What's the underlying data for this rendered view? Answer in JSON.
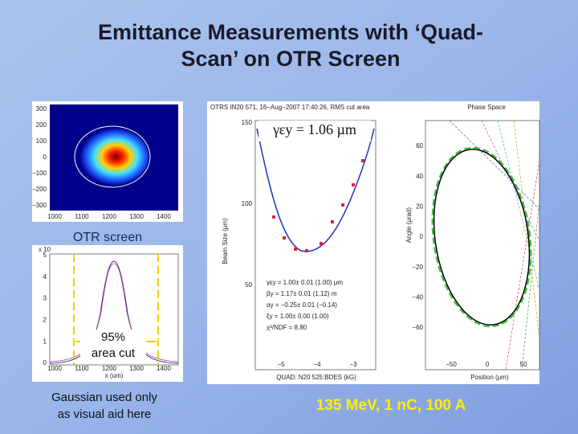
{
  "slide": {
    "title_line1": "Emittance Measurements with ‘Quad-",
    "title_line2": "Scan’ on OTR Screen",
    "otr_image": {
      "yticks": [
        "300",
        "200",
        "100",
        "0",
        "−100",
        "−200",
        "−300"
      ],
      "xticks": [
        "1000",
        "1100",
        "1200",
        "1300",
        "1400"
      ]
    },
    "otr_label": "OTR screen",
    "profile": {
      "scale": "x 10",
      "yticks": [
        "5",
        "4",
        "3",
        "2",
        "1",
        "0"
      ],
      "xticks": [
        "1000",
        "1100",
        "1200",
        "1300",
        "1400"
      ],
      "xlabel": "x (um)",
      "cut_line1": "95%",
      "cut_line2": "area cut"
    },
    "note_line1": "Gaussian used only",
    "note_line2": "as visual aid here",
    "scan": {
      "title": "OTRS IN20 571, 16−Aug−2007 17:40:26, RMS cut area",
      "ylabel": "Beam Size  (µm)",
      "yticks": [
        "150",
        "100",
        "50"
      ],
      "xticks": [
        "−5",
        "−4",
        "−3"
      ],
      "xlabel": "QUAD: N20 525:BDES  (kG)",
      "emittance": "γεy = 1.06 µm",
      "fit": [
        "γεy = 1.00± 0.01 (1.00) µm",
        "βy = 1.17± 0.01 (1.12) m",
        "αy = −0.25± 0.01 (−0.14)",
        "ξy = 1.00± 0.00 (1.00)",
        "χ²/NDF = 8.80"
      ]
    },
    "phase": {
      "title": "Phase Space",
      "ylabel": "Angle  (µrad)",
      "yticks": [
        "60",
        "40",
        "20",
        "0",
        "−20",
        "−40",
        "−60"
      ],
      "xticks": [
        "−50",
        "0",
        "50"
      ],
      "xlabel": "Position  (µm)"
    },
    "beam_params": "135 MeV, 1 nC, 100 A"
  }
}
